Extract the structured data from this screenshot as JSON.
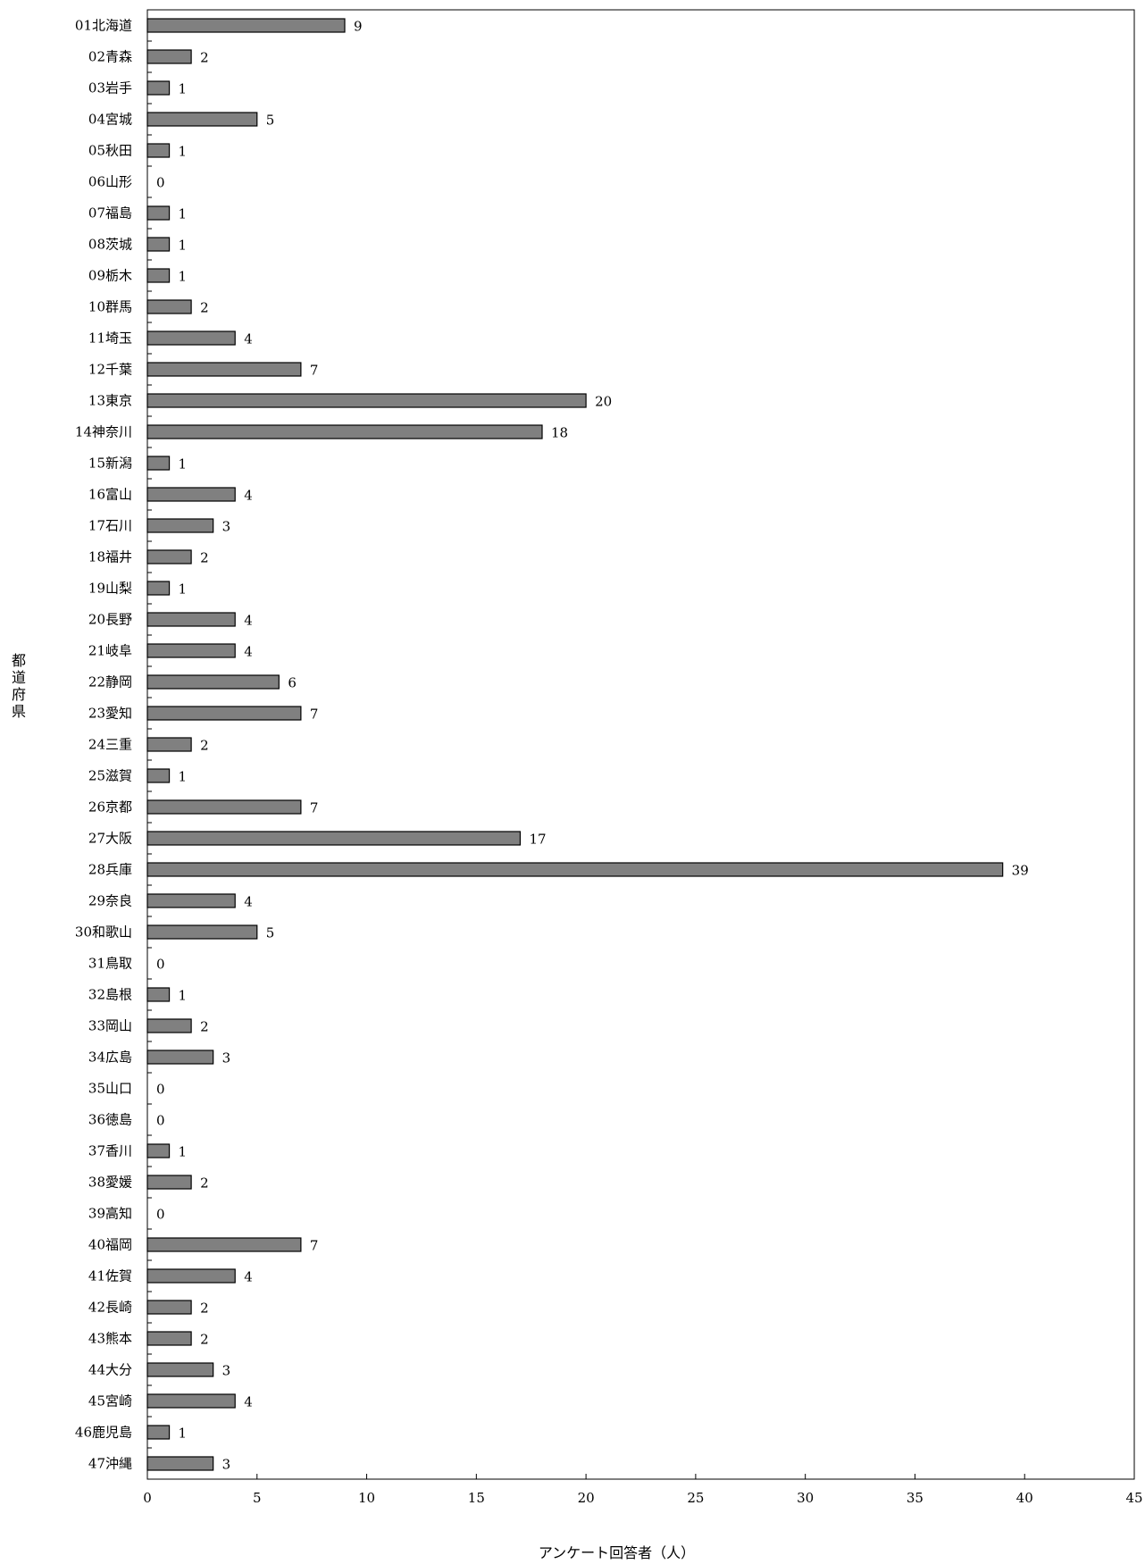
{
  "chart_data": {
    "type": "bar",
    "orientation": "horizontal",
    "title": "",
    "xlabel": "アンケート回答者（人）",
    "ylabel": "都道府県",
    "xlim": [
      0,
      45
    ],
    "xticks": [
      0,
      5,
      10,
      15,
      20,
      25,
      30,
      35,
      40,
      45
    ],
    "grid": false,
    "legend": "none",
    "bar_color": "#808080",
    "bar_edge_color": "#000000",
    "data_labels": true,
    "categories": [
      "01北海道",
      "02青森",
      "03岩手",
      "04宮城",
      "05秋田",
      "06山形",
      "07福島",
      "08茨城",
      "09栃木",
      "10群馬",
      "11埼玉",
      "12千葉",
      "13東京",
      "14神奈川",
      "15新潟",
      "16富山",
      "17石川",
      "18福井",
      "19山梨",
      "20長野",
      "21岐阜",
      "22静岡",
      "23愛知",
      "24三重",
      "25滋賀",
      "26京都",
      "27大阪",
      "28兵庫",
      "29奈良",
      "30和歌山",
      "31鳥取",
      "32島根",
      "33岡山",
      "34広島",
      "35山口",
      "36徳島",
      "37香川",
      "38愛媛",
      "39高知",
      "40福岡",
      "41佐賀",
      "42長崎",
      "43熊本",
      "44大分",
      "45宮崎",
      "46鹿児島",
      "47沖縄"
    ],
    "values": [
      9,
      2,
      1,
      5,
      1,
      0,
      1,
      1,
      1,
      2,
      4,
      7,
      20,
      18,
      1,
      4,
      3,
      2,
      1,
      4,
      4,
      6,
      7,
      2,
      1,
      7,
      17,
      39,
      4,
      5,
      0,
      1,
      2,
      3,
      0,
      0,
      1,
      2,
      0,
      7,
      4,
      2,
      2,
      3,
      4,
      1,
      3
    ]
  }
}
